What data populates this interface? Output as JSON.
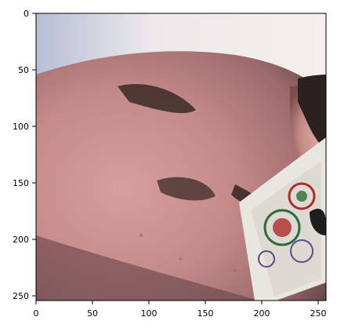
{
  "figure": {
    "type": "image-plot",
    "subject": "close-up-face-with-playing-card",
    "x_ticks": [
      "0",
      "50",
      "100",
      "150",
      "200",
      "250"
    ],
    "y_ticks": [
      "0",
      "50",
      "100",
      "150",
      "200",
      "250"
    ],
    "x_range": [
      0,
      256
    ],
    "y_range": [
      0,
      256
    ],
    "y_inverted": true,
    "tick_values": [
      0,
      50,
      100,
      150,
      200,
      250
    ],
    "colors": {
      "axes": "#000000",
      "skin": "#c48f8b",
      "skin_dark": "#8f5f5d",
      "background_light": "#ece9ea",
      "card_base": "#e8e7df",
      "card_accent_red": "#b02b2b",
      "card_accent_green": "#2f6b3a"
    }
  }
}
